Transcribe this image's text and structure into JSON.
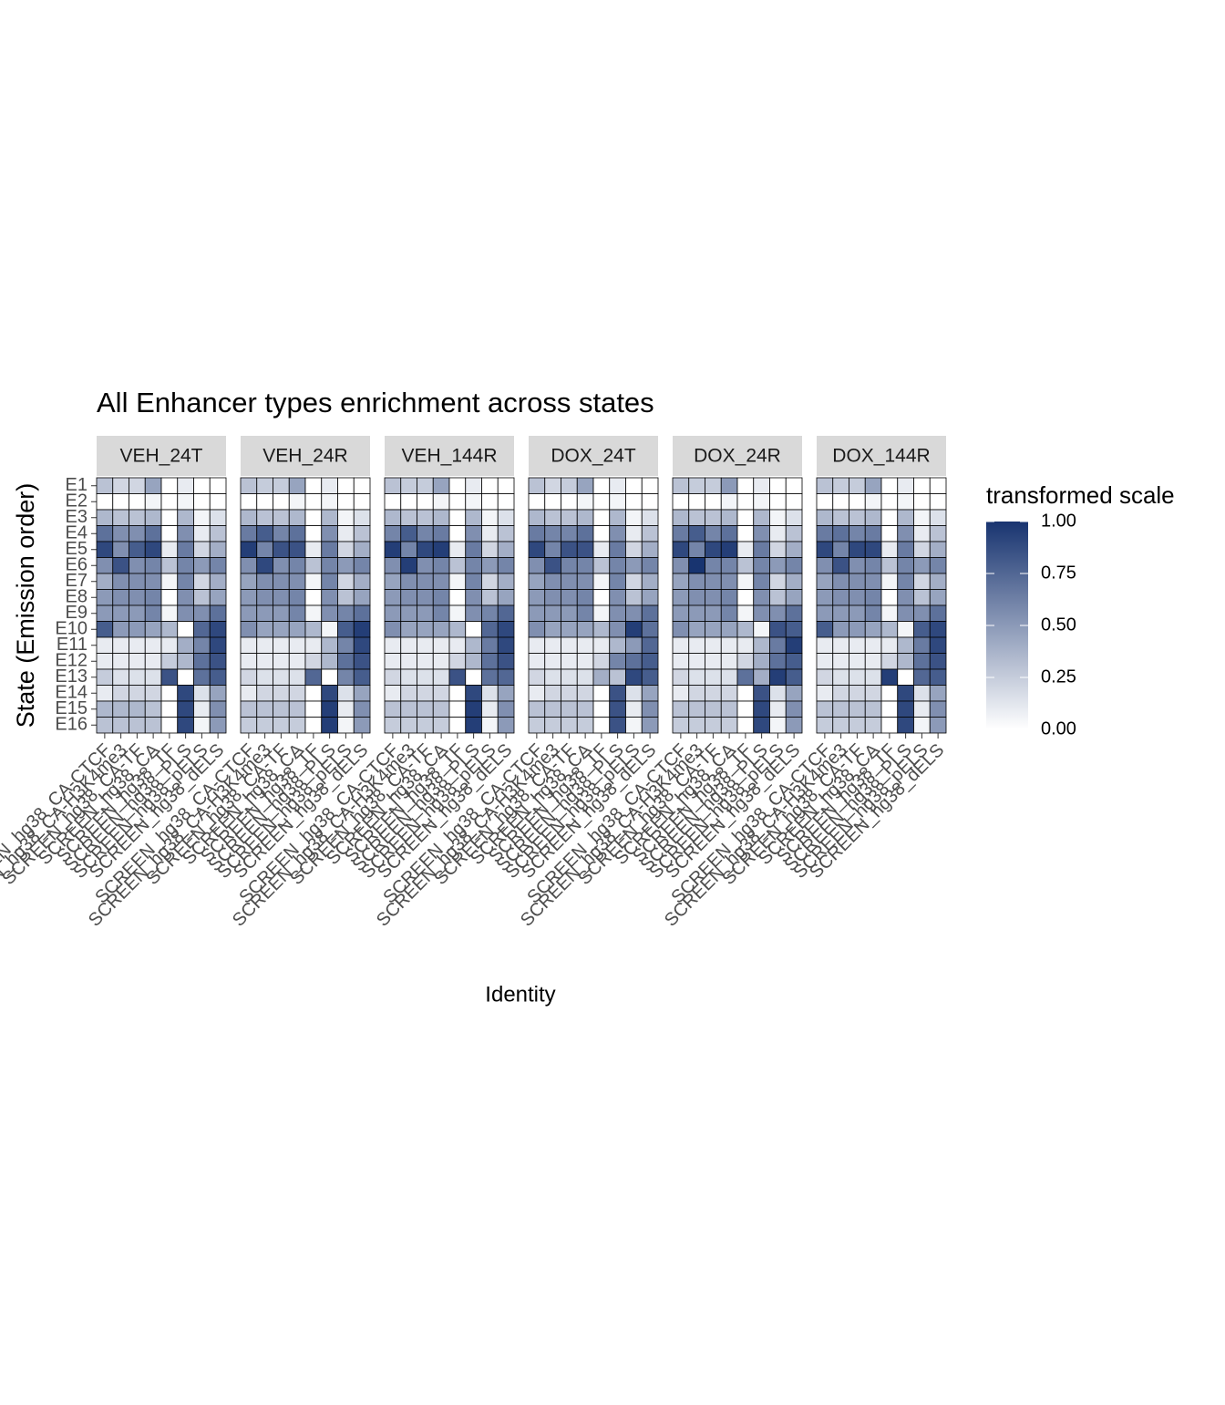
{
  "chart_data": {
    "type": "heatmap",
    "title": "All Enhancer types enrichment across states",
    "x_label": "Identity",
    "y_label": "State (Emission order)",
    "legend_title": "transformed scale",
    "low_color": "#ffffff",
    "high_color": "#183470",
    "categories": [
      "SCREEN_hg38_CA-CTCF",
      "SCREEN_hg38_CA-H3K4me3",
      "SCREEN_hg38_CA-TF",
      "SCREEN_hg38_CA",
      "SCREEN_hg38_TF",
      "SCREEN_hg38_PLS",
      "SCREEN_hg38_pELS",
      "SCREEN_hg38_dELS"
    ],
    "rows": [
      "E1",
      "E2",
      "E3",
      "E4",
      "E5",
      "E6",
      "E7",
      "E8",
      "E9",
      "E10",
      "E11",
      "E12",
      "E13",
      "E14",
      "E15",
      "E16"
    ],
    "clim": [
      0,
      1
    ],
    "cticks": [
      {
        "value": 0,
        "label": "0.00"
      },
      {
        "value": 0.25,
        "label": "0.25"
      },
      {
        "value": 0.5,
        "label": "0.50"
      },
      {
        "value": 0.75,
        "label": "0.75"
      },
      {
        "value": 1,
        "label": "1.00"
      }
    ],
    "facets": [
      {
        "name": "VEH_24T",
        "values": [
          [
            0.3,
            0.2,
            0.2,
            0.45,
            0,
            0.1,
            0,
            0
          ],
          [
            0,
            0,
            0,
            0.05,
            0,
            0.05,
            0,
            0
          ],
          [
            0.35,
            0.3,
            0.3,
            0.35,
            0,
            0.35,
            0.05,
            0.15
          ],
          [
            0.7,
            0.55,
            0.55,
            0.7,
            0,
            0.55,
            0.1,
            0.3
          ],
          [
            0.9,
            0.55,
            0.8,
            0.9,
            0.1,
            0.65,
            0.2,
            0.4
          ],
          [
            0.55,
            0.85,
            0.55,
            0.6,
            0.3,
            0.6,
            0.5,
            0.6
          ],
          [
            0.4,
            0.55,
            0.55,
            0.55,
            0.05,
            0.6,
            0.2,
            0.4
          ],
          [
            0.5,
            0.55,
            0.55,
            0.6,
            0,
            0.55,
            0.3,
            0.45
          ],
          [
            0.5,
            0.5,
            0.5,
            0.6,
            0.05,
            0.55,
            0.55,
            0.7
          ],
          [
            0.8,
            0.5,
            0.5,
            0.45,
            0.35,
            0,
            0.75,
            0.9
          ],
          [
            0.1,
            0.1,
            0.1,
            0.1,
            0.1,
            0.4,
            0.6,
            0.9
          ],
          [
            0.1,
            0.1,
            0.1,
            0.1,
            0.25,
            0.35,
            0.7,
            0.85
          ],
          [
            0.25,
            0.15,
            0.15,
            0.15,
            0.85,
            0,
            0.7,
            0.8
          ],
          [
            0.1,
            0.2,
            0.2,
            0.2,
            0,
            0.9,
            0.15,
            0.45
          ],
          [
            0.35,
            0.35,
            0.35,
            0.3,
            0,
            0.9,
            0.1,
            0.55
          ],
          [
            0.3,
            0.3,
            0.3,
            0.3,
            0,
            0.9,
            0.05,
            0.5
          ]
        ]
      },
      {
        "name": "VEH_24R",
        "values": [
          [
            0.3,
            0.25,
            0.25,
            0.45,
            0,
            0.1,
            0,
            0
          ],
          [
            0,
            0,
            0,
            0.05,
            0,
            0.05,
            0,
            0
          ],
          [
            0.35,
            0.3,
            0.3,
            0.35,
            0,
            0.35,
            0.05,
            0.15
          ],
          [
            0.65,
            0.8,
            0.6,
            0.7,
            0,
            0.55,
            0.1,
            0.3
          ],
          [
            0.95,
            0.6,
            0.85,
            0.85,
            0.1,
            0.65,
            0.2,
            0.4
          ],
          [
            0.55,
            0.9,
            0.55,
            0.6,
            0.3,
            0.6,
            0.5,
            0.6
          ],
          [
            0.45,
            0.55,
            0.55,
            0.55,
            0.05,
            0.6,
            0.2,
            0.4
          ],
          [
            0.5,
            0.55,
            0.55,
            0.6,
            0,
            0.55,
            0.3,
            0.45
          ],
          [
            0.5,
            0.5,
            0.5,
            0.6,
            0.05,
            0.55,
            0.6,
            0.7
          ],
          [
            0.55,
            0.45,
            0.45,
            0.45,
            0.35,
            0.05,
            0.8,
            0.95
          ],
          [
            0.1,
            0.1,
            0.1,
            0.1,
            0.1,
            0.35,
            0.6,
            0.9
          ],
          [
            0.1,
            0.1,
            0.1,
            0.1,
            0.2,
            0.35,
            0.7,
            0.85
          ],
          [
            0.2,
            0.15,
            0.15,
            0.15,
            0.75,
            0,
            0.6,
            0.8
          ],
          [
            0.1,
            0.2,
            0.2,
            0.2,
            0,
            0.9,
            0.15,
            0.45
          ],
          [
            0.3,
            0.3,
            0.3,
            0.3,
            0,
            0.95,
            0.1,
            0.55
          ],
          [
            0.25,
            0.25,
            0.25,
            0.25,
            0,
            0.95,
            0.05,
            0.5
          ]
        ]
      },
      {
        "name": "VEH_144R",
        "values": [
          [
            0.3,
            0.25,
            0.25,
            0.45,
            0,
            0.1,
            0,
            0
          ],
          [
            0,
            0,
            0,
            0.05,
            0,
            0.05,
            0,
            0
          ],
          [
            0.35,
            0.3,
            0.3,
            0.35,
            0,
            0.35,
            0.05,
            0.15
          ],
          [
            0.6,
            0.8,
            0.6,
            0.65,
            0,
            0.55,
            0.1,
            0.3
          ],
          [
            0.95,
            0.6,
            0.9,
            0.95,
            0.1,
            0.65,
            0.2,
            0.4
          ],
          [
            0.55,
            0.95,
            0.55,
            0.6,
            0.3,
            0.6,
            0.5,
            0.6
          ],
          [
            0.45,
            0.55,
            0.55,
            0.55,
            0.05,
            0.6,
            0.2,
            0.4
          ],
          [
            0.5,
            0.55,
            0.55,
            0.6,
            0,
            0.55,
            0.3,
            0.45
          ],
          [
            0.5,
            0.5,
            0.5,
            0.6,
            0.05,
            0.55,
            0.6,
            0.75
          ],
          [
            0.55,
            0.45,
            0.45,
            0.45,
            0.35,
            0,
            0.75,
            0.9
          ],
          [
            0.1,
            0.1,
            0.1,
            0.1,
            0.1,
            0.35,
            0.65,
            0.9
          ],
          [
            0.1,
            0.1,
            0.1,
            0.1,
            0.2,
            0.35,
            0.7,
            0.85
          ],
          [
            0.2,
            0.15,
            0.15,
            0.15,
            0.85,
            0,
            0.7,
            0.75
          ],
          [
            0.1,
            0.2,
            0.2,
            0.2,
            0,
            0.9,
            0.15,
            0.45
          ],
          [
            0.3,
            0.3,
            0.3,
            0.3,
            0,
            0.95,
            0.1,
            0.55
          ],
          [
            0.25,
            0.25,
            0.25,
            0.25,
            0,
            0.95,
            0.05,
            0.5
          ]
        ]
      },
      {
        "name": "DOX_24T",
        "values": [
          [
            0.3,
            0.2,
            0.25,
            0.45,
            0,
            0.1,
            0,
            0
          ],
          [
            0,
            0,
            0,
            0.05,
            0,
            0.05,
            0,
            0
          ],
          [
            0.35,
            0.3,
            0.3,
            0.35,
            0,
            0.35,
            0.05,
            0.15
          ],
          [
            0.65,
            0.6,
            0.6,
            0.7,
            0,
            0.55,
            0.1,
            0.3
          ],
          [
            0.9,
            0.6,
            0.85,
            0.85,
            0.1,
            0.65,
            0.2,
            0.4
          ],
          [
            0.55,
            0.85,
            0.6,
            0.6,
            0.3,
            0.6,
            0.5,
            0.6
          ],
          [
            0.45,
            0.55,
            0.55,
            0.55,
            0.05,
            0.6,
            0.2,
            0.4
          ],
          [
            0.5,
            0.55,
            0.55,
            0.6,
            0,
            0.55,
            0.3,
            0.45
          ],
          [
            0.5,
            0.5,
            0.5,
            0.6,
            0.05,
            0.55,
            0.55,
            0.7
          ],
          [
            0.55,
            0.45,
            0.45,
            0.45,
            0.35,
            0.55,
            0.95,
            0.7
          ],
          [
            0.1,
            0.1,
            0.1,
            0.1,
            0.1,
            0.35,
            0.5,
            0.75
          ],
          [
            0.1,
            0.1,
            0.1,
            0.1,
            0.2,
            0.6,
            0.7,
            0.8
          ],
          [
            0.2,
            0.15,
            0.15,
            0.15,
            0.4,
            0.3,
            0.9,
            0.8
          ],
          [
            0.1,
            0.2,
            0.2,
            0.2,
            0,
            0.85,
            0.15,
            0.45
          ],
          [
            0.3,
            0.3,
            0.3,
            0.3,
            0,
            0.85,
            0.1,
            0.55
          ],
          [
            0.25,
            0.25,
            0.25,
            0.25,
            0,
            0.85,
            0.05,
            0.5
          ]
        ]
      },
      {
        "name": "DOX_24R",
        "values": [
          [
            0.3,
            0.25,
            0.25,
            0.5,
            0,
            0.1,
            0,
            0
          ],
          [
            0,
            0,
            0,
            0.05,
            0,
            0.05,
            0,
            0
          ],
          [
            0.35,
            0.3,
            0.3,
            0.35,
            0,
            0.35,
            0.05,
            0.15
          ],
          [
            0.65,
            0.8,
            0.6,
            0.7,
            0,
            0.55,
            0.1,
            0.3
          ],
          [
            0.9,
            0.6,
            0.9,
            0.95,
            0.1,
            0.65,
            0.2,
            0.4
          ],
          [
            0.55,
            1,
            0.6,
            0.6,
            0.3,
            0.6,
            0.5,
            0.6
          ],
          [
            0.45,
            0.55,
            0.55,
            0.55,
            0.05,
            0.6,
            0.2,
            0.4
          ],
          [
            0.5,
            0.55,
            0.55,
            0.6,
            0,
            0.55,
            0.3,
            0.45
          ],
          [
            0.5,
            0.5,
            0.5,
            0.6,
            0.05,
            0.55,
            0.55,
            0.7
          ],
          [
            0.55,
            0.45,
            0.45,
            0.45,
            0.35,
            0.05,
            0.85,
            0.8
          ],
          [
            0.1,
            0.1,
            0.1,
            0.1,
            0.1,
            0.35,
            0.65,
            0.95
          ],
          [
            0.1,
            0.1,
            0.1,
            0.1,
            0.2,
            0.4,
            0.7,
            0.8
          ],
          [
            0.2,
            0.15,
            0.15,
            0.15,
            0.7,
            0.4,
            0.95,
            0.8
          ],
          [
            0.1,
            0.2,
            0.2,
            0.2,
            0,
            0.85,
            0.15,
            0.45
          ],
          [
            0.3,
            0.3,
            0.3,
            0.3,
            0,
            0.9,
            0.1,
            0.55
          ],
          [
            0.25,
            0.25,
            0.25,
            0.25,
            0,
            0.9,
            0.05,
            0.5
          ]
        ]
      },
      {
        "name": "DOX_144R",
        "values": [
          [
            0.3,
            0.25,
            0.25,
            0.45,
            0,
            0.1,
            0,
            0
          ],
          [
            0,
            0,
            0,
            0.05,
            0,
            0.05,
            0,
            0
          ],
          [
            0.35,
            0.3,
            0.3,
            0.35,
            0,
            0.35,
            0.05,
            0.15
          ],
          [
            0.65,
            0.7,
            0.6,
            0.65,
            0,
            0.55,
            0.1,
            0.3
          ],
          [
            0.9,
            0.6,
            0.9,
            0.9,
            0.1,
            0.65,
            0.2,
            0.4
          ],
          [
            0.55,
            0.85,
            0.55,
            0.6,
            0.3,
            0.6,
            0.5,
            0.6
          ],
          [
            0.45,
            0.55,
            0.55,
            0.55,
            0.05,
            0.6,
            0.2,
            0.4
          ],
          [
            0.5,
            0.55,
            0.55,
            0.6,
            0,
            0.55,
            0.3,
            0.45
          ],
          [
            0.5,
            0.5,
            0.5,
            0.6,
            0.05,
            0.55,
            0.55,
            0.7
          ],
          [
            0.8,
            0.5,
            0.5,
            0.45,
            0.35,
            0.05,
            0.8,
            0.9
          ],
          [
            0.1,
            0.1,
            0.1,
            0.1,
            0.1,
            0.35,
            0.65,
            0.9
          ],
          [
            0.1,
            0.1,
            0.1,
            0.1,
            0.2,
            0.35,
            0.7,
            0.85
          ],
          [
            0.2,
            0.15,
            0.15,
            0.15,
            0.95,
            0,
            0.75,
            0.8
          ],
          [
            0.1,
            0.2,
            0.2,
            0.2,
            0,
            0.9,
            0.15,
            0.45
          ],
          [
            0.3,
            0.3,
            0.3,
            0.3,
            0,
            0.9,
            0.1,
            0.55
          ],
          [
            0.25,
            0.25,
            0.25,
            0.25,
            0,
            0.9,
            0.05,
            0.5
          ]
        ]
      }
    ]
  }
}
